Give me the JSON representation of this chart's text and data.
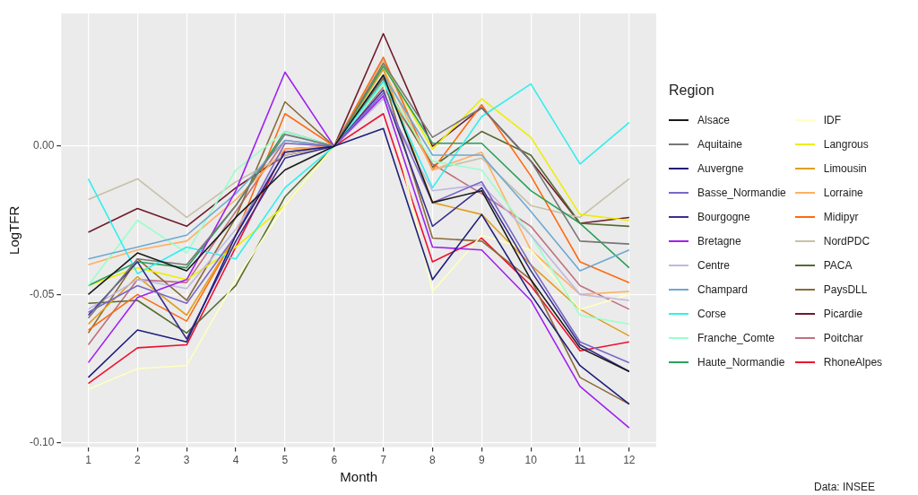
{
  "chart_data": {
    "type": "line",
    "xlabel": "Month",
    "ylabel": "LogTFR",
    "legend_title": "Region",
    "legend": "right",
    "grid": true,
    "marker": "none",
    "line_style": "solid",
    "x": [
      1,
      2,
      3,
      4,
      5,
      6,
      7,
      8,
      9,
      10,
      11,
      12
    ],
    "xlim": [
      0.45,
      12.55
    ],
    "xticks": [
      1,
      2,
      3,
      4,
      5,
      6,
      7,
      8,
      9,
      10,
      11,
      12
    ],
    "ylim": [
      -0.1015,
      0.0448
    ],
    "yticks": [
      {
        "value": -0.1,
        "label": "-0.10"
      },
      {
        "value": -0.05,
        "label": "-0.05"
      },
      {
        "value": 0,
        "label": "0.00"
      }
    ],
    "annotations": [
      "Data: INSEE"
    ],
    "series": [
      {
        "name": "Alsace",
        "color": "#1a1a1a",
        "values": [
          -0.05,
          -0.036,
          -0.042,
          -0.024,
          -0.008,
          0,
          0.024,
          -0.019,
          -0.015,
          -0.045,
          -0.068,
          -0.076
        ]
      },
      {
        "name": "Aquitaine",
        "color": "#777777",
        "values": [
          -0.058,
          -0.038,
          -0.04,
          -0.02,
          0.004,
          0,
          0.028,
          0.003,
          0.013,
          -0.005,
          -0.032,
          -0.033
        ]
      },
      {
        "name": "Auvergne",
        "color": "#1f1f7a",
        "values": [
          -0.078,
          -0.062,
          -0.066,
          -0.03,
          -0.002,
          0,
          0.006,
          -0.045,
          -0.023,
          -0.05,
          -0.074,
          -0.087
        ]
      },
      {
        "name": "Basse_Normandie",
        "color": "#7b68c8",
        "values": [
          -0.056,
          -0.047,
          -0.053,
          -0.03,
          0.001,
          0,
          0.018,
          -0.019,
          -0.012,
          -0.04,
          -0.066,
          -0.073
        ]
      },
      {
        "name": "Bourgogne",
        "color": "#3b2f8f",
        "values": [
          -0.057,
          -0.039,
          -0.065,
          -0.032,
          -0.004,
          0,
          0.019,
          -0.027,
          -0.014,
          -0.042,
          -0.067,
          -0.076
        ]
      },
      {
        "name": "Bretagne",
        "color": "#a020f0",
        "values": [
          -0.073,
          -0.051,
          -0.045,
          -0.015,
          0.025,
          0,
          0.017,
          -0.034,
          -0.035,
          -0.052,
          -0.081,
          -0.095
        ]
      },
      {
        "name": "Centre",
        "color": "#c0b8e0",
        "values": [
          -0.055,
          -0.045,
          -0.048,
          -0.028,
          -0.002,
          0,
          0.016,
          -0.015,
          -0.013,
          -0.03,
          -0.05,
          -0.052
        ]
      },
      {
        "name": "Champard",
        "color": "#6fa8d0",
        "values": [
          -0.038,
          -0.034,
          -0.03,
          -0.016,
          0.002,
          0,
          0.024,
          -0.003,
          -0.003,
          -0.022,
          -0.042,
          -0.035
        ]
      },
      {
        "name": "Corse",
        "color": "#33eeee",
        "values": [
          -0.011,
          -0.043,
          -0.034,
          -0.038,
          -0.014,
          0,
          0.022,
          -0.014,
          0.01,
          0.021,
          -0.006,
          0.008
        ]
      },
      {
        "name": "Franche_Comte",
        "color": "#99ffcc",
        "values": [
          -0.047,
          -0.025,
          -0.036,
          -0.008,
          0.005,
          0,
          0.021,
          -0.005,
          -0.008,
          -0.03,
          -0.057,
          -0.06
        ]
      },
      {
        "name": "Haute_Normandie",
        "color": "#2ca05a",
        "values": [
          -0.047,
          -0.039,
          -0.041,
          -0.02,
          0.005,
          0,
          0.027,
          0.001,
          0.001,
          -0.015,
          -0.026,
          -0.041
        ]
      },
      {
        "name": "IDF",
        "color": "#ffffc0",
        "values": [
          -0.082,
          -0.075,
          -0.074,
          -0.045,
          -0.02,
          0,
          0.021,
          -0.049,
          -0.03,
          -0.035,
          -0.055,
          -0.05
        ]
      },
      {
        "name": "Langrous",
        "color": "#eeee00",
        "values": [
          -0.047,
          -0.041,
          -0.045,
          -0.034,
          -0.02,
          0,
          0.028,
          -0.001,
          0.016,
          0.003,
          -0.023,
          -0.025
        ]
      },
      {
        "name": "Limousin",
        "color": "#e0a020",
        "values": [
          -0.06,
          -0.044,
          -0.057,
          -0.03,
          -0.002,
          0,
          0.026,
          -0.019,
          -0.023,
          -0.04,
          -0.055,
          -0.064
        ]
      },
      {
        "name": "Lorraine",
        "color": "#ffb060",
        "values": [
          -0.04,
          -0.035,
          -0.032,
          -0.018,
          -0.001,
          0,
          0.026,
          -0.008,
          -0.002,
          -0.035,
          -0.05,
          -0.049
        ]
      },
      {
        "name": "Midipyr",
        "color": "#ff6a10",
        "values": [
          -0.062,
          -0.05,
          -0.059,
          -0.03,
          0.011,
          0,
          0.03,
          -0.008,
          0.014,
          -0.01,
          -0.039,
          -0.046
        ]
      },
      {
        "name": "NordPDC",
        "color": "#c8c0a8",
        "values": [
          -0.018,
          -0.011,
          -0.024,
          -0.012,
          -0.003,
          0,
          0.029,
          -0.008,
          -0.004,
          -0.02,
          -0.024,
          -0.011
        ]
      },
      {
        "name": "PACA",
        "color": "#556b2f",
        "values": [
          -0.053,
          -0.052,
          -0.063,
          -0.047,
          -0.017,
          0,
          0.022,
          -0.007,
          0.005,
          -0.003,
          -0.026,
          -0.027
        ]
      },
      {
        "name": "PaysDLL",
        "color": "#8b6a3a",
        "values": [
          -0.063,
          -0.038,
          -0.052,
          -0.024,
          0.015,
          0,
          0.023,
          -0.031,
          -0.032,
          -0.045,
          -0.078,
          -0.087
        ]
      },
      {
        "name": "Picardie",
        "color": "#701a2a",
        "values": [
          -0.029,
          -0.021,
          -0.027,
          -0.014,
          -0.003,
          0,
          0.038,
          0,
          0.013,
          -0.005,
          -0.026,
          -0.024
        ]
      },
      {
        "name": "Poitchar",
        "color": "#c07080",
        "values": [
          -0.067,
          -0.045,
          -0.046,
          -0.022,
          0.002,
          0,
          0.02,
          -0.006,
          -0.016,
          -0.027,
          -0.047,
          -0.055
        ]
      },
      {
        "name": "RhoneAlpes",
        "color": "#ee1030",
        "values": [
          -0.08,
          -0.068,
          -0.067,
          -0.034,
          -0.001,
          0,
          0.011,
          -0.039,
          -0.031,
          -0.047,
          -0.069,
          -0.066
        ]
      }
    ]
  }
}
